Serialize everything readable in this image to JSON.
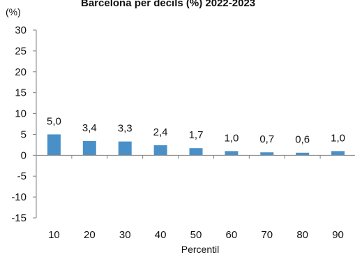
{
  "chart_data": {
    "type": "bar",
    "title": "Barcelona per decils (%)  2022-2023",
    "ylabel": "(%)",
    "xlabel": "Percentil",
    "categories": [
      "10",
      "20",
      "30",
      "40",
      "50",
      "60",
      "70",
      "80",
      "90"
    ],
    "values": [
      5.0,
      3.4,
      3.3,
      2.4,
      1.7,
      1.0,
      0.7,
      0.6,
      1.0
    ],
    "value_labels": [
      "5,0",
      "3,4",
      "3,3",
      "2,4",
      "1,7",
      "1,0",
      "0,7",
      "0,6",
      "1,0"
    ],
    "ylim": [
      -15,
      30
    ],
    "yticks": [
      30,
      25,
      20,
      15,
      10,
      5,
      0,
      -5,
      -10,
      -15
    ],
    "ytick_labels": [
      "30",
      "25",
      "20",
      "15",
      "10",
      "5",
      "0",
      "-5",
      "-10",
      "-15"
    ],
    "grid": false,
    "legend": "none",
    "bar_color": "#4a90c8",
    "axis_color": "#808080"
  }
}
